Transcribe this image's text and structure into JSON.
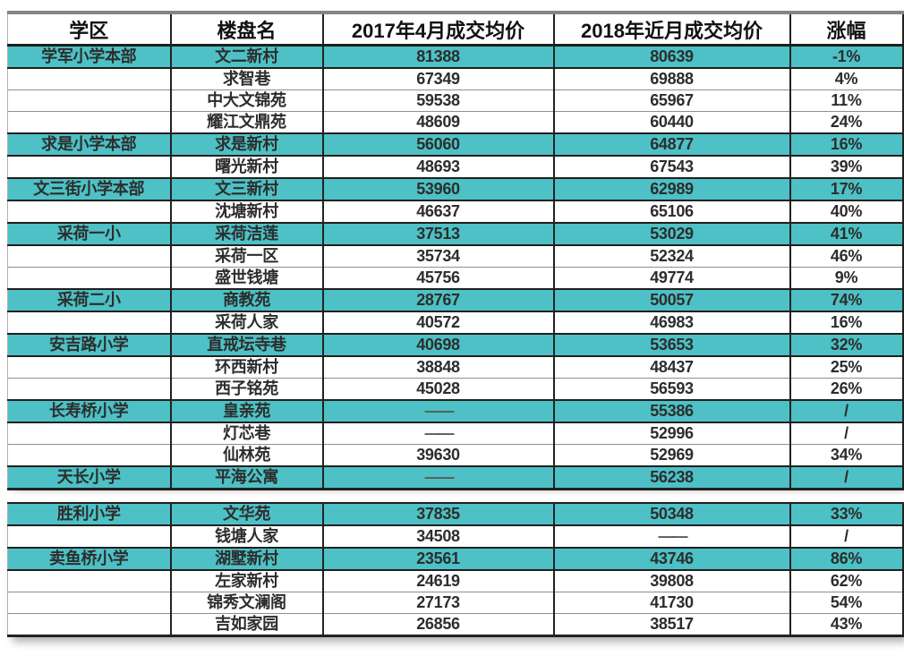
{
  "colors": {
    "highlight_row": "#4DC1C5",
    "grid_dark": "#222222",
    "grid_light": "#8f8f8f"
  },
  "table": {
    "headers": [
      "学区",
      "楼盘名",
      "2017年4月成交均价",
      "2018年近月成交均价",
      "涨幅"
    ],
    "sections": [
      {
        "rows": [
          {
            "highlight": true,
            "cells": [
              "学军小学本部",
              "文二新村",
              "81388",
              "80639",
              "-1%"
            ]
          },
          {
            "highlight": false,
            "cells": [
              "",
              "求智巷",
              "67349",
              "69888",
              "4%"
            ]
          },
          {
            "highlight": false,
            "cells": [
              "",
              "中大文锦苑",
              "59538",
              "65967",
              "11%"
            ]
          },
          {
            "highlight": false,
            "cells": [
              "",
              "耀江文鼎苑",
              "48609",
              "60440",
              "24%"
            ]
          },
          {
            "highlight": true,
            "cells": [
              "求是小学本部",
              "求是新村",
              "56060",
              "64877",
              "16%"
            ]
          },
          {
            "highlight": false,
            "cells": [
              "",
              "曙光新村",
              "48693",
              "67543",
              "39%"
            ]
          },
          {
            "highlight": true,
            "cells": [
              "文三街小学本部",
              "文三新村",
              "53960",
              "62989",
              "17%"
            ]
          },
          {
            "highlight": false,
            "cells": [
              "",
              "沈塘新村",
              "46637",
              "65106",
              "40%"
            ]
          },
          {
            "highlight": true,
            "cells": [
              "采荷一小",
              "采荷洁莲",
              "37513",
              "53029",
              "41%"
            ]
          },
          {
            "highlight": false,
            "cells": [
              "",
              "采荷一区",
              "35734",
              "52324",
              "46%"
            ]
          },
          {
            "highlight": false,
            "cells": [
              "",
              "盛世钱塘",
              "45756",
              "49774",
              "9%"
            ]
          },
          {
            "highlight": true,
            "cells": [
              "采荷二小",
              "商教苑",
              "28767",
              "50057",
              "74%"
            ]
          },
          {
            "highlight": false,
            "cells": [
              "",
              "采荷人家",
              "40572",
              "46983",
              "16%"
            ]
          },
          {
            "highlight": true,
            "cells": [
              "安吉路小学",
              "直戒坛寺巷",
              "40698",
              "53653",
              "32%"
            ]
          },
          {
            "highlight": false,
            "cells": [
              "",
              "环西新村",
              "38848",
              "48437",
              "25%"
            ]
          },
          {
            "highlight": false,
            "cells": [
              "",
              "西子铭苑",
              "45028",
              "56593",
              "26%"
            ]
          },
          {
            "highlight": true,
            "cells": [
              "长寿桥小学",
              "皇亲苑",
              "——",
              "55386",
              "/"
            ]
          },
          {
            "highlight": false,
            "cells": [
              "",
              "灯芯巷",
              "——",
              "52996",
              "/"
            ]
          },
          {
            "highlight": false,
            "cells": [
              "",
              "仙林苑",
              "39630",
              "52969",
              "34%"
            ]
          },
          {
            "highlight": true,
            "cells": [
              "天长小学",
              "平海公寓",
              "——",
              "56238",
              "/"
            ]
          }
        ]
      },
      {
        "rows": [
          {
            "highlight": true,
            "cells": [
              "胜利小学",
              "文华苑",
              "37835",
              "50348",
              "33%"
            ]
          },
          {
            "highlight": false,
            "cells": [
              "",
              "钱塘人家",
              "34508",
              "——",
              "/"
            ]
          },
          {
            "highlight": true,
            "cells": [
              "卖鱼桥小学",
              "湖墅新村",
              "23561",
              "43746",
              "86%"
            ]
          },
          {
            "highlight": false,
            "cells": [
              "",
              "左家新村",
              "24619",
              "39808",
              "62%"
            ]
          },
          {
            "highlight": false,
            "cells": [
              "",
              "锦秀文澜阁",
              "27173",
              "41730",
              "54%"
            ]
          },
          {
            "highlight": false,
            "cells": [
              "",
              "吉如家园",
              "26856",
              "38517",
              "43%"
            ]
          }
        ]
      }
    ]
  }
}
